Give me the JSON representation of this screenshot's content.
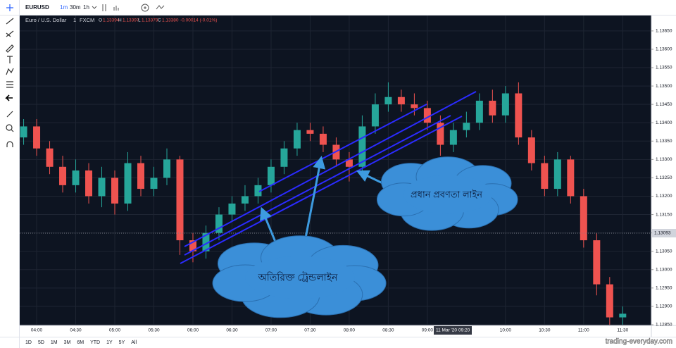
{
  "toolbar": {
    "symbol": "EURUSD",
    "intervals": [
      "1m",
      "30m",
      "1h"
    ]
  },
  "legend": {
    "name": "Euro / U.S. Dollar",
    "interval": "1",
    "source": "FXCM",
    "open_label": "O",
    "open": "1.13394",
    "high_label": "H",
    "high": "1.13397",
    "low_label": "L",
    "low": "1.13379",
    "close_label": "C",
    "close": "1.13380",
    "change": "-0.00014 (-0.01%)"
  },
  "last_price": "1.13093",
  "crosshair": {
    "date": "11 Mar '20",
    "time": "09:20"
  },
  "ranges": [
    "1D",
    "5D",
    "1M",
    "3M",
    "6M",
    "YTD",
    "1Y",
    "5Y",
    "All"
  ],
  "watermark": "trading-everyday.com",
  "annotations": {
    "main": "প্রধান প্রবণতা লাইন",
    "extra": "অতিরিক্ত ট্রেন্ডলাইন"
  },
  "chart_data": {
    "type": "candlestick",
    "x": [
      "03:50",
      "04:00",
      "04:10",
      "04:20",
      "04:30",
      "04:40",
      "04:50",
      "05:00",
      "05:10",
      "05:20",
      "05:30",
      "05:40",
      "05:50",
      "06:00",
      "06:10",
      "06:20",
      "06:30",
      "06:40",
      "06:50",
      "07:00",
      "07:10",
      "07:20",
      "07:30",
      "07:40",
      "07:50",
      "08:00",
      "08:10",
      "08:20",
      "08:30",
      "08:40",
      "08:50",
      "09:00",
      "09:10",
      "09:20",
      "09:30",
      "09:40",
      "09:50",
      "10:00",
      "10:10",
      "10:20",
      "10:30",
      "10:40",
      "10:50",
      "11:00",
      "11:10",
      "11:20",
      "11:30"
    ],
    "open": [
      1.1336,
      1.1339,
      1.1333,
      1.1328,
      1.1323,
      1.1327,
      1.132,
      1.1325,
      1.1318,
      1.1329,
      1.1322,
      1.1325,
      1.133,
      1.1308,
      1.1305,
      1.131,
      1.1315,
      1.1318,
      1.132,
      1.1323,
      1.1328,
      1.1333,
      1.1338,
      1.1337,
      1.1334,
      1.133,
      1.1328,
      1.1339,
      1.1345,
      1.1347,
      1.1345,
      1.1344,
      1.134,
      1.1334,
      1.1338,
      1.134,
      1.1346,
      1.1342,
      1.1348,
      1.1336,
      1.1329,
      1.1322,
      1.133,
      1.132,
      1.1308,
      1.1296,
      1.1287
    ],
    "high": [
      1.1341,
      1.1341,
      1.1335,
      1.1331,
      1.133,
      1.1329,
      1.1328,
      1.1327,
      1.1332,
      1.1331,
      1.1328,
      1.1333,
      1.1331,
      1.131,
      1.1312,
      1.1317,
      1.132,
      1.1323,
      1.1325,
      1.133,
      1.1335,
      1.134,
      1.134,
      1.1339,
      1.1336,
      1.1332,
      1.1342,
      1.1348,
      1.1351,
      1.1349,
      1.1348,
      1.1346,
      1.1342,
      1.134,
      1.1343,
      1.1348,
      1.1349,
      1.135,
      1.1351,
      1.1338,
      1.1331,
      1.1332,
      1.1331,
      1.1322,
      1.131,
      1.1298,
      1.129
    ],
    "low": [
      1.1334,
      1.1331,
      1.1326,
      1.1321,
      1.1321,
      1.1318,
      1.1317,
      1.1315,
      1.1316,
      1.132,
      1.132,
      1.1323,
      1.1304,
      1.1302,
      1.1303,
      1.1308,
      1.1313,
      1.1316,
      1.1318,
      1.1321,
      1.1326,
      1.1331,
      1.1335,
      1.1332,
      1.1328,
      1.1324,
      1.1326,
      1.1337,
      1.1343,
      1.1343,
      1.1342,
      1.1338,
      1.1331,
      1.1332,
      1.1336,
      1.1338,
      1.134,
      1.134,
      1.1334,
      1.1327,
      1.132,
      1.132,
      1.1318,
      1.1306,
      1.1293,
      1.1285,
      1.1285
    ],
    "close": [
      1.1339,
      1.1333,
      1.1328,
      1.1323,
      1.1327,
      1.132,
      1.1325,
      1.1318,
      1.1329,
      1.1322,
      1.1325,
      1.133,
      1.1308,
      1.1305,
      1.131,
      1.1315,
      1.1318,
      1.132,
      1.1323,
      1.1328,
      1.1333,
      1.1338,
      1.1337,
      1.1334,
      1.133,
      1.1328,
      1.1339,
      1.1345,
      1.1347,
      1.1345,
      1.1344,
      1.134,
      1.1334,
      1.1338,
      1.134,
      1.1346,
      1.1342,
      1.1348,
      1.1336,
      1.1329,
      1.1322,
      1.133,
      1.132,
      1.1308,
      1.1296,
      1.1287,
      1.1288
    ],
    "up_color": "#26a69a",
    "down_color": "#ef5350",
    "xlim": [
      "03:47",
      "11:52"
    ],
    "xticks": [
      "04:00",
      "04:30",
      "05:00",
      "05:30",
      "06:00",
      "06:30",
      "07:00",
      "07:30",
      "08:00",
      "08:30",
      "09:00",
      "10:00",
      "10:30",
      "11:00",
      "11:30"
    ],
    "ylim": [
      1.12848,
      1.13692
    ],
    "yticks": [
      {
        "value": 1.1365,
        "label": "1.13650"
      },
      {
        "value": 1.136,
        "label": "1.13600"
      },
      {
        "value": 1.1355,
        "label": "1.13550"
      },
      {
        "value": 1.135,
        "label": "1.13500"
      },
      {
        "value": 1.1345,
        "label": "1.13450"
      },
      {
        "value": 1.134,
        "label": "1.13400"
      },
      {
        "value": 1.1335,
        "label": "1.13350"
      },
      {
        "value": 1.133,
        "label": "1.13300"
      },
      {
        "value": 1.1325,
        "label": "1.13250"
      },
      {
        "value": 1.132,
        "label": "1.13200"
      },
      {
        "value": 1.1315,
        "label": "1.13150"
      },
      {
        "value": 1.131,
        "label": "1.13100"
      },
      {
        "value": 1.1305,
        "label": "1.13050"
      },
      {
        "value": 1.13,
        "label": "1.13000"
      },
      {
        "value": 1.1295,
        "label": "1.12950"
      },
      {
        "value": 1.129,
        "label": "1.12900"
      },
      {
        "value": 1.1285,
        "label": "1.12850"
      }
    ],
    "grid": true
  }
}
